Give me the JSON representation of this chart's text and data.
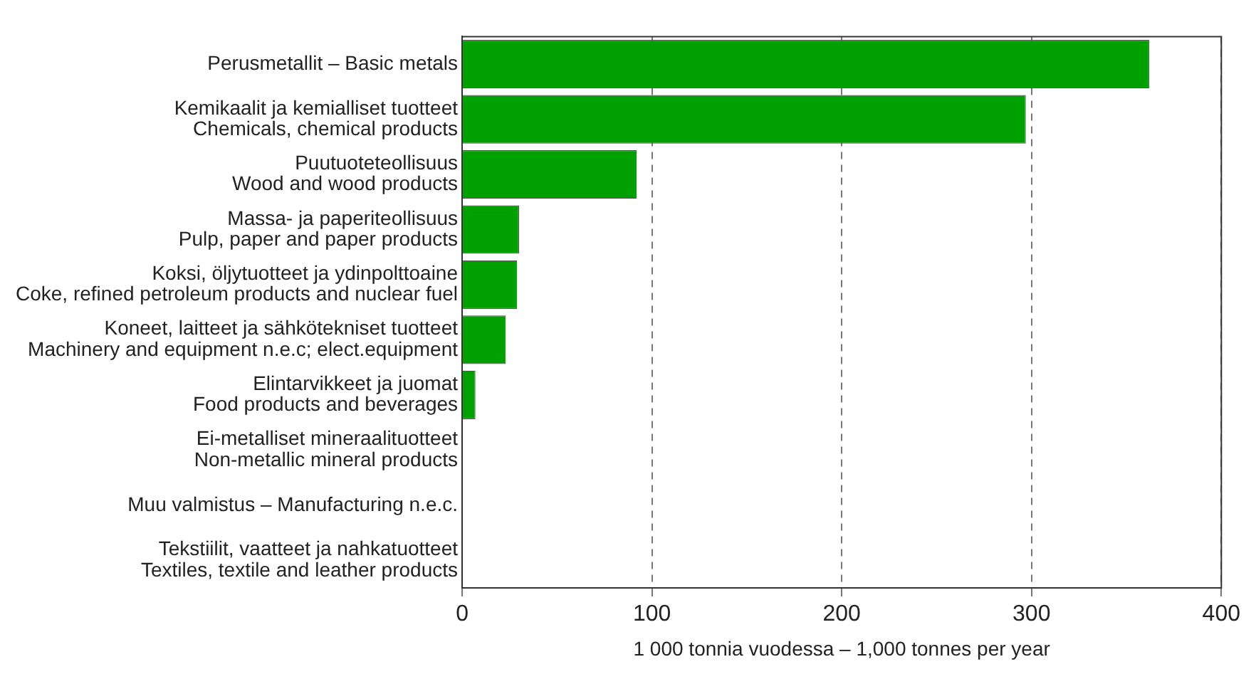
{
  "chart_data": {
    "type": "bar",
    "orientation": "horizontal",
    "xlabel": "1 000 tonnia vuodessa – 1,000 tonnes per year",
    "categories": [
      "Perusmetallit – Basic metals",
      "Kemikaalit ja kemialliset tuotteet\nChemicals, chemical products",
      "Puutuoteteollisuus\nWood and wood products",
      "Massa- ja paperiteollisuus\nPulp, paper and paper products",
      "Koksi, öljytuotteet ja ydinpolttoaine\nCoke, refined petroleum products and nuclear fuel",
      "Koneet, laitteet ja sähkötekniset tuotteet\nMachinery and equipment n.e.c; elect.equipment",
      "Elintarvikkeet ja juomat\nFood products and beverages",
      "Ei-metalliset mineraalituotteet\nNon-metallic mineral products",
      "Muu valmistus – Manufacturing n.e.c.",
      "Tekstiilit, vaatteet ja nahkatuotteet\nTextiles, textile and leather products"
    ],
    "values": [
      362,
      297,
      92,
      30,
      29,
      23,
      7,
      null,
      null,
      null
    ],
    "color": "#00a000",
    "xlim": [
      0,
      400
    ],
    "xticks": [
      0,
      100,
      200,
      300,
      400
    ],
    "grid": "x"
  }
}
